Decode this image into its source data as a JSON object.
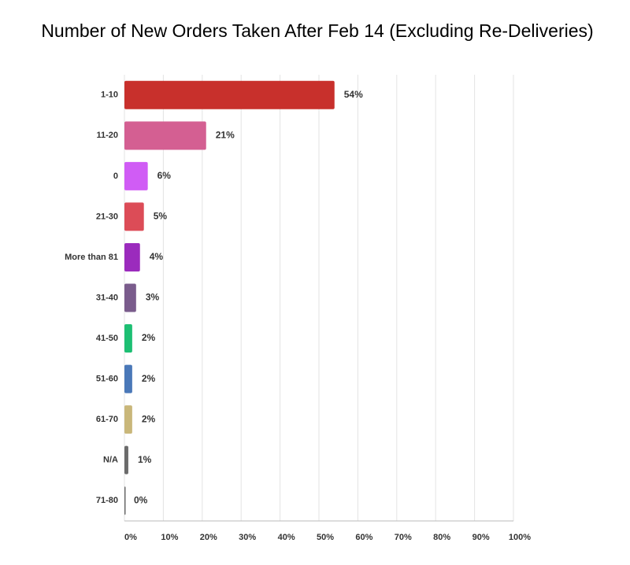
{
  "chart_data": {
    "type": "hbar",
    "title": "Number of New Orders Taken After Feb 14 (Excluding Re-Deliveries)",
    "categories": [
      "1-10",
      "11-20",
      "0",
      "21-30",
      "More than 81",
      "31-40",
      "41-50",
      "51-60",
      "61-70",
      "N/A",
      "71-80"
    ],
    "values": [
      54,
      21,
      6,
      5,
      4,
      3,
      2,
      2,
      2,
      1,
      0
    ],
    "value_labels": [
      "54%",
      "21%",
      "6%",
      "5%",
      "4%",
      "3%",
      "2%",
      "2%",
      "2%",
      "1%",
      "0%"
    ],
    "colors": [
      "#c8302c",
      "#d45f92",
      "#d05cf5",
      "#dc4c57",
      "#9b2bbd",
      "#7a5c8c",
      "#1dbf73",
      "#4a78b8",
      "#c9b77a",
      "#6b6b6b",
      "#6b6b6b"
    ],
    "xlim": [
      0,
      100
    ],
    "xticks": [
      {
        "value": 0,
        "label": "0%"
      },
      {
        "value": 10,
        "label": "10%"
      },
      {
        "value": 20,
        "label": "20%"
      },
      {
        "value": 30,
        "label": "30%"
      },
      {
        "value": 40,
        "label": "40%"
      },
      {
        "value": 50,
        "label": "50%"
      },
      {
        "value": 60,
        "label": "60%"
      },
      {
        "value": 70,
        "label": "70%"
      },
      {
        "value": 80,
        "label": "80%"
      },
      {
        "value": 90,
        "label": "90%"
      },
      {
        "value": 100,
        "label": "100%"
      }
    ],
    "grid": true
  }
}
